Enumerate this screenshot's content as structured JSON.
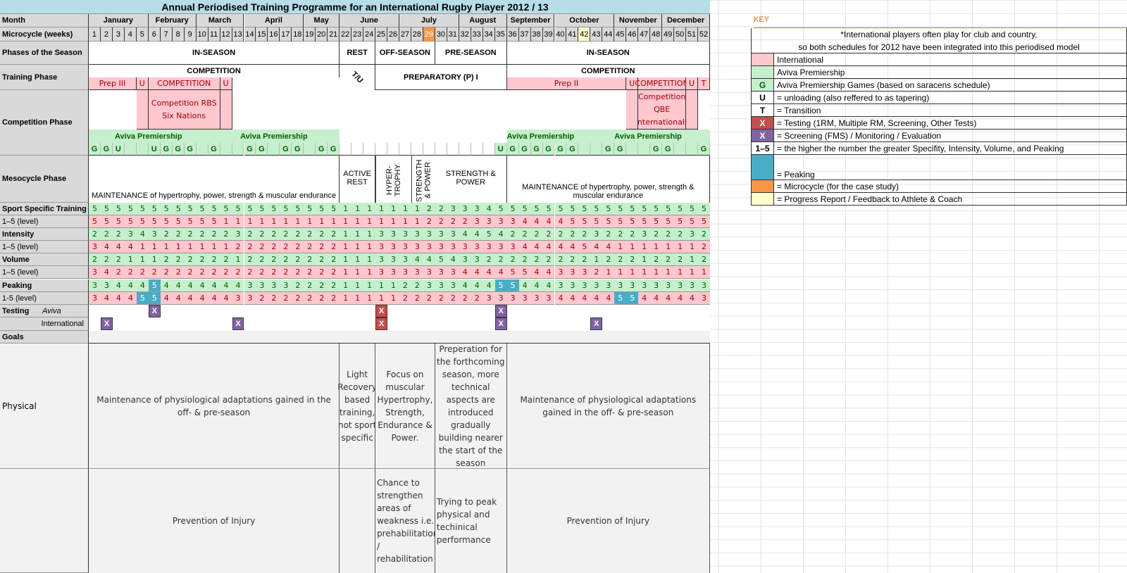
{
  "title": "Annual Periodised Training Programme for an International Rugby Player 2012 / 13",
  "labels": {
    "month": "Month",
    "microcycle": "Microcycle (weeks)",
    "phases": "Phases of the Season",
    "training": "Training Phase",
    "competition": "Competition Phase",
    "mesocycle": "Mesocycle Phase",
    "sport": "Sport Specific Training",
    "level": "1–5 (level)",
    "intensity": "Intensity",
    "volume": "Volume",
    "peaking": "Peaking",
    "peak_level": "1-5 (level)",
    "testing": "Testing",
    "aviva": "Aviva",
    "international": "International",
    "goals": "Goals",
    "physical": "Physical"
  },
  "months": [
    {
      "name": "January",
      "weeks": 5
    },
    {
      "name": "February",
      "weeks": 4
    },
    {
      "name": "March",
      "weeks": 4
    },
    {
      "name": "April",
      "weeks": 5
    },
    {
      "name": "May",
      "weeks": 3
    },
    {
      "name": "June",
      "weeks": 5
    },
    {
      "name": "July",
      "weeks": 5
    },
    {
      "name": "August",
      "weeks": 4
    },
    {
      "name": "September",
      "weeks": 4
    },
    {
      "name": "October",
      "weeks": 5
    },
    {
      "name": "November",
      "weeks": 4
    },
    {
      "name": "December",
      "weeks": 4
    }
  ],
  "weeks": {
    "count": 52,
    "highlight_orange": 29,
    "highlight_yellow": 42
  },
  "phases": [
    {
      "label": "IN-SEASON",
      "from": 1,
      "to": 21
    },
    {
      "label": "REST",
      "from": 22,
      "to": 24
    },
    {
      "label": "OFF-SEASON",
      "from": 25,
      "to": 29
    },
    {
      "label": "PRE-SEASON",
      "from": 30,
      "to": 35
    },
    {
      "label": "IN-SEASON",
      "from": 36,
      "to": 52
    }
  ],
  "training": [
    {
      "label": "COMPETITION",
      "from": 1,
      "to": 21
    },
    {
      "label": "T / U",
      "from": 22,
      "to": 24
    },
    {
      "label": "PREPARATORY (P) I",
      "from": 25,
      "to": 35
    },
    {
      "label": "COMPETITION",
      "from": 36,
      "to": 52
    }
  ],
  "international_phases": [
    {
      "label": "Prep III",
      "from": 1,
      "to": 4
    },
    {
      "label": "U",
      "from": 5,
      "to": 5
    },
    {
      "label": "COMPETITION",
      "from": 6,
      "to": 11
    },
    {
      "label": "U",
      "from": 12,
      "to": 12
    },
    {
      "label": "Prep II",
      "from": 36,
      "to": 45
    },
    {
      "label": "U",
      "from": 46,
      "to": 46
    },
    {
      "label": "COMPETITION",
      "from": 47,
      "to": 50
    },
    {
      "label": "U",
      "from": 51,
      "to": 51
    },
    {
      "label": "T",
      "from": 52,
      "to": 52
    }
  ],
  "international_competitions": [
    {
      "label": "Competition RBS Six Nations",
      "from": 6,
      "to": 11
    },
    {
      "label": "Competition QBE Internationals",
      "from": 47,
      "to": 50
    }
  ],
  "aviva_labels": [
    {
      "label": "Aviva Premiership",
      "from": 1,
      "to": 10
    },
    {
      "label": "Aviva Premiership",
      "from": 11,
      "to": 21
    },
    {
      "label": "Aviva Premiership",
      "from": 36,
      "to": 44
    },
    {
      "label": "Aviva Premiership",
      "from": 45,
      "to": 52
    }
  ],
  "aviva_games": [
    "G",
    "G",
    "U",
    "",
    "",
    "U",
    "G",
    "G",
    "G",
    "",
    "G",
    "",
    "",
    "G",
    "G",
    "",
    "G",
    "G",
    "",
    "G",
    "G",
    "",
    "",
    "",
    "",
    "",
    "",
    "",
    "",
    "",
    "",
    "",
    "",
    "",
    "U",
    "G",
    "G",
    "G",
    "G",
    "G",
    "G",
    "",
    "",
    "G",
    "G",
    "",
    "",
    "G",
    "G",
    "",
    "",
    "G"
  ],
  "mesocycle": [
    {
      "label": "MAINTENANCE of hypertrophy, power, strength & muscular endurance",
      "from": 1,
      "to": 21
    },
    {
      "label": "ACTIVE REST",
      "from": 22,
      "to": 24
    },
    {
      "label": "HYPER-TROPHY",
      "from": 25,
      "to": 27,
      "vertical": true
    },
    {
      "label": "STRENGTH & POWER",
      "from": 28,
      "to": 29,
      "vertical": true
    },
    {
      "label": "STRENGTH & POWER",
      "from": 30,
      "to": 35
    },
    {
      "label": "MAINTENANCE of hypertrophy, power, strength & muscular endurance",
      "from": 36,
      "to": 52
    }
  ],
  "rows": {
    "sport": [
      5,
      5,
      5,
      5,
      5,
      5,
      5,
      5,
      5,
      5,
      5,
      5,
      5,
      5,
      5,
      5,
      5,
      5,
      5,
      5,
      5,
      1,
      1,
      1,
      1,
      1,
      1,
      1,
      2,
      2,
      3,
      3,
      3,
      4,
      5,
      5,
      5,
      5,
      5,
      5,
      5,
      5,
      5,
      5,
      5,
      5,
      5,
      5,
      5,
      5,
      5,
      5
    ],
    "sport_level": [
      5,
      5,
      5,
      5,
      5,
      5,
      5,
      5,
      5,
      5,
      5,
      1,
      1,
      1,
      1,
      1,
      1,
      1,
      1,
      1,
      1,
      1,
      1,
      1,
      1,
      1,
      1,
      1,
      2,
      2,
      2,
      2,
      3,
      3,
      3,
      3,
      4,
      4,
      4,
      4,
      5,
      5,
      5,
      5,
      5,
      5,
      5,
      5,
      5,
      5,
      5,
      5
    ],
    "intensity": [
      2,
      2,
      2,
      3,
      4,
      3,
      2,
      2,
      2,
      2,
      2,
      2,
      3,
      2,
      2,
      2,
      2,
      2,
      2,
      2,
      2,
      1,
      1,
      1,
      3,
      3,
      3,
      3,
      3,
      3,
      3,
      4,
      4,
      5,
      4,
      2,
      2,
      2,
      2,
      2,
      2,
      2,
      3,
      2,
      2,
      2,
      3,
      2,
      2,
      2,
      3,
      2
    ],
    "intensity_level": [
      3,
      4,
      4,
      4,
      1,
      1,
      1,
      1,
      1,
      1,
      1,
      1,
      2,
      2,
      2,
      2,
      2,
      2,
      2,
      2,
      2,
      1,
      1,
      1,
      3,
      3,
      3,
      3,
      3,
      3,
      3,
      3,
      3,
      3,
      3,
      3,
      4,
      4,
      4,
      4,
      4,
      5,
      4,
      4,
      1,
      1,
      1,
      1,
      1,
      1,
      1,
      2
    ],
    "volume": [
      2,
      2,
      2,
      1,
      1,
      1,
      2,
      2,
      2,
      2,
      2,
      2,
      1,
      2,
      2,
      2,
      2,
      2,
      2,
      2,
      2,
      1,
      1,
      1,
      3,
      3,
      3,
      4,
      4,
      5,
      4,
      3,
      3,
      2,
      2,
      2,
      2,
      2,
      2,
      2,
      2,
      2,
      1,
      2,
      2,
      2,
      1,
      2,
      2,
      2,
      1,
      2
    ],
    "volume_level": [
      3,
      4,
      2,
      2,
      2,
      2,
      2,
      2,
      2,
      2,
      2,
      2,
      2,
      2,
      2,
      2,
      2,
      2,
      2,
      2,
      2,
      1,
      1,
      1,
      3,
      3,
      3,
      3,
      3,
      3,
      3,
      4,
      4,
      4,
      4,
      5,
      5,
      4,
      4,
      3,
      3,
      3,
      2,
      1,
      1,
      1,
      1,
      1,
      1,
      1,
      1,
      1
    ],
    "peaking": [
      3,
      3,
      4,
      4,
      4,
      5,
      4,
      4,
      4,
      4,
      4,
      4,
      4,
      3,
      3,
      3,
      3,
      2,
      2,
      2,
      2,
      1,
      1,
      1,
      1,
      1,
      2,
      2,
      3,
      3,
      3,
      4,
      4,
      4,
      5,
      5,
      4,
      4,
      4,
      3,
      3,
      3,
      3,
      3,
      3,
      3,
      3,
      3,
      3,
      3,
      3,
      3
    ],
    "peaking_level": [
      3,
      4,
      4,
      4,
      5,
      5,
      4,
      4,
      4,
      4,
      4,
      4,
      3,
      3,
      2,
      2,
      2,
      2,
      2,
      2,
      2,
      1,
      1,
      1,
      1,
      1,
      2,
      2,
      2,
      2,
      2,
      2,
      2,
      3,
      3,
      3,
      3,
      3,
      3,
      4,
      4,
      4,
      4,
      4,
      5,
      5,
      4,
      4,
      4,
      4,
      4,
      3
    ]
  },
  "peak_cells": {
    "peaking": [
      6,
      35,
      36
    ],
    "peaking_level": [
      5,
      6,
      45,
      46
    ]
  },
  "testing": {
    "aviva": [
      {
        "week": 6,
        "type": "screening"
      },
      {
        "week": 25,
        "type": "testing"
      },
      {
        "week": 35,
        "type": "screening"
      }
    ],
    "international": [
      {
        "week": 2,
        "type": "screening"
      },
      {
        "week": 13,
        "type": "screening"
      },
      {
        "week": 25,
        "type": "testing"
      },
      {
        "week": 35,
        "type": "screening"
      },
      {
        "week": 43,
        "type": "screening"
      }
    ],
    "mark": "X"
  },
  "goals": {
    "physical": [
      {
        "text": "Maintenance of physiological adaptations gained in the off- & pre-season",
        "from": 1,
        "to": 21
      },
      {
        "text": "Light Recovery based training, not sport specific",
        "from": 22,
        "to": 24
      },
      {
        "text": "Focus on muscular Hypertrophy, Strength, Endurance & Power.",
        "from": 25,
        "to": 29
      },
      {
        "text": "Preperation for the forthcoming season, more technical aspects are introduced gradually building nearer the start of the season",
        "from": 30,
        "to": 35
      },
      {
        "text": "Maintenance of physiological adaptations gained in the off- & pre-season",
        "from": 36,
        "to": 52
      }
    ],
    "injury": [
      {
        "text": "Prevention of Injury",
        "from": 1,
        "to": 21
      },
      {
        "text": "",
        "from": 22,
        "to": 24
      },
      {
        "text": "Chance to strengthen areas of weakness i.e. prehabilitation / rehabilitation",
        "from": 25,
        "to": 29
      },
      {
        "text": "Trying to peak physical and techinical performance",
        "from": 30,
        "to": 35
      },
      {
        "text": "Prevention of Injury",
        "from": 36,
        "to": 52
      }
    ]
  },
  "key": {
    "title": "KEY",
    "note_line1": "*International players often play for club and country,",
    "note_line2": "so both schedules for 2012 have been integrated into this periodised model",
    "items": [
      {
        "swatch": "",
        "color": "#ffc7ce",
        "text": "International"
      },
      {
        "swatch": "",
        "color": "#c6efce",
        "text": "Aviva Premiership"
      },
      {
        "swatch": "G",
        "color": "#c6efce",
        "text": "Aviva Premiership Games (based on saracens schedule)"
      },
      {
        "swatch": "U",
        "color": "#ffffff",
        "text": " = unloading (also reffered to as tapering)"
      },
      {
        "swatch": "T",
        "color": "#ffffff",
        "text": " = Transition"
      },
      {
        "swatch": "X",
        "color": "#c0504d",
        "text": " = Testing (1RM, Multiple RM, Screening, Other Tests)"
      },
      {
        "swatch": "X",
        "color": "#8064a2",
        "text": " = Screening (FMS) / Monitoring / Evaluation"
      },
      {
        "swatch": "1–5",
        "color": "#ffffff",
        "text": " = the higher the number the greater Specifity, Intensity, Volume, and Peaking"
      },
      {
        "swatch": "",
        "color": "#4bacc6",
        "text": " = Peaking"
      },
      {
        "swatch": "",
        "color": "#f79646",
        "text": " = Microcycle (for the case study)"
      },
      {
        "swatch": "",
        "color": "#ffffcc",
        "text": " = Progress Report / Feedback to Athlete & Coach"
      }
    ]
  }
}
